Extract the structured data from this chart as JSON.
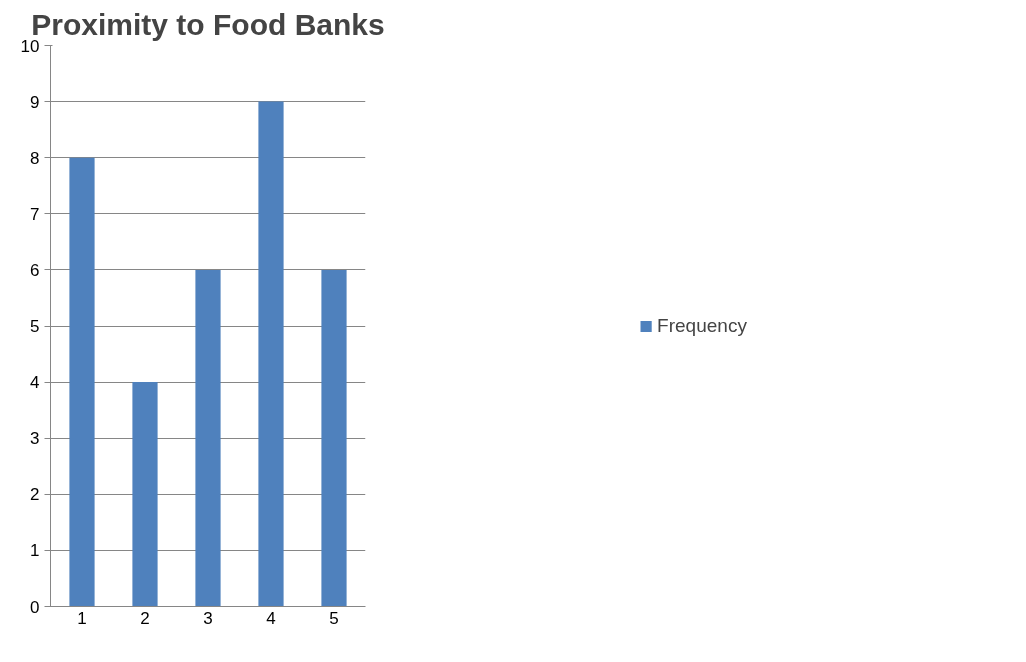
{
  "chart_data": {
    "type": "bar",
    "title": "Proximity to Food Banks",
    "categories": [
      "1",
      "2",
      "3",
      "4",
      "5"
    ],
    "series": [
      {
        "name": "Frequency",
        "color": "#4f81bd",
        "values": [
          8,
          4,
          6,
          9,
          6
        ]
      }
    ],
    "ylim": [
      0,
      10
    ],
    "yticks": [
      0,
      1,
      2,
      3,
      4,
      5,
      6,
      7,
      8,
      9,
      10
    ],
    "grid": "y",
    "legend": "right"
  }
}
